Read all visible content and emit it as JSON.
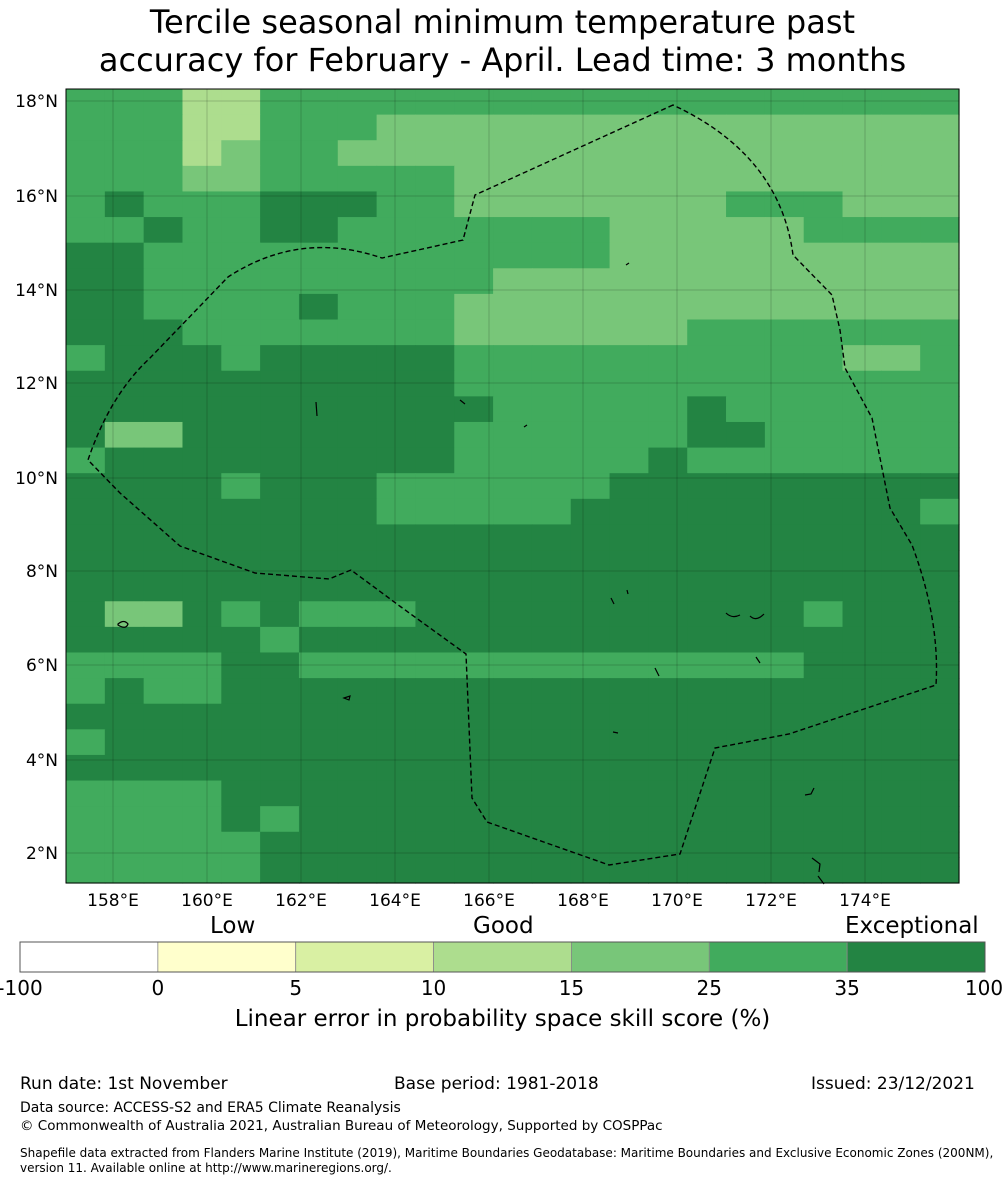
{
  "title": {
    "line1": "Tercile seasonal minimum temperature past",
    "line2": "accuracy for February - April. Lead time: 3 months"
  },
  "map": {
    "lat_labels": [
      "18°N",
      "16°N",
      "14°N",
      "12°N",
      "10°N",
      "8°N",
      "6°N",
      "4°N",
      "2°N"
    ],
    "lon_labels": [
      "158°E",
      "160°E",
      "162°E",
      "164°E",
      "166°E",
      "168°E",
      "170°E",
      "172°E",
      "174°E"
    ],
    "grid_note": "LEPS skill categories per grid cell (0=<0,1=0-5,2=5-10,3=10-15,4=15-25,5=25-35,6=35-100)"
  },
  "colorbar": {
    "category_labels": {
      "low": "Low",
      "good": "Good",
      "exceptional": "Exceptional"
    },
    "ticks": [
      "-100",
      "0",
      "5",
      "10",
      "15",
      "25",
      "35",
      "100"
    ],
    "colors": [
      "#ffffff",
      "#ffffcc",
      "#d9f0a3",
      "#addd8e",
      "#78c679",
      "#41ab5d",
      "#238443"
    ],
    "axis_label": "Linear error in probability space skill score (%)"
  },
  "footer": {
    "run_date": "Run date: 1st November",
    "base_period": "Base period: 1981-2018",
    "issued": "Issued: 23/12/2021",
    "data_source": "Data source: ACCESS-S2 and ERA5 Climate Reanalysis",
    "copyright": "© Commonwealth of Australia 2021, Australian Bureau of Meteorology, Supported by COSPPac",
    "shapefile_line1": "Shapefile data extracted from Flanders Marine Institute (2019), Maritime Boundaries Geodatabase: Maritime Boundaries and Exclusive Economic Zones (200NM),",
    "shapefile_line2": "version 11. Available online at http://www.marineregions.org/."
  }
}
